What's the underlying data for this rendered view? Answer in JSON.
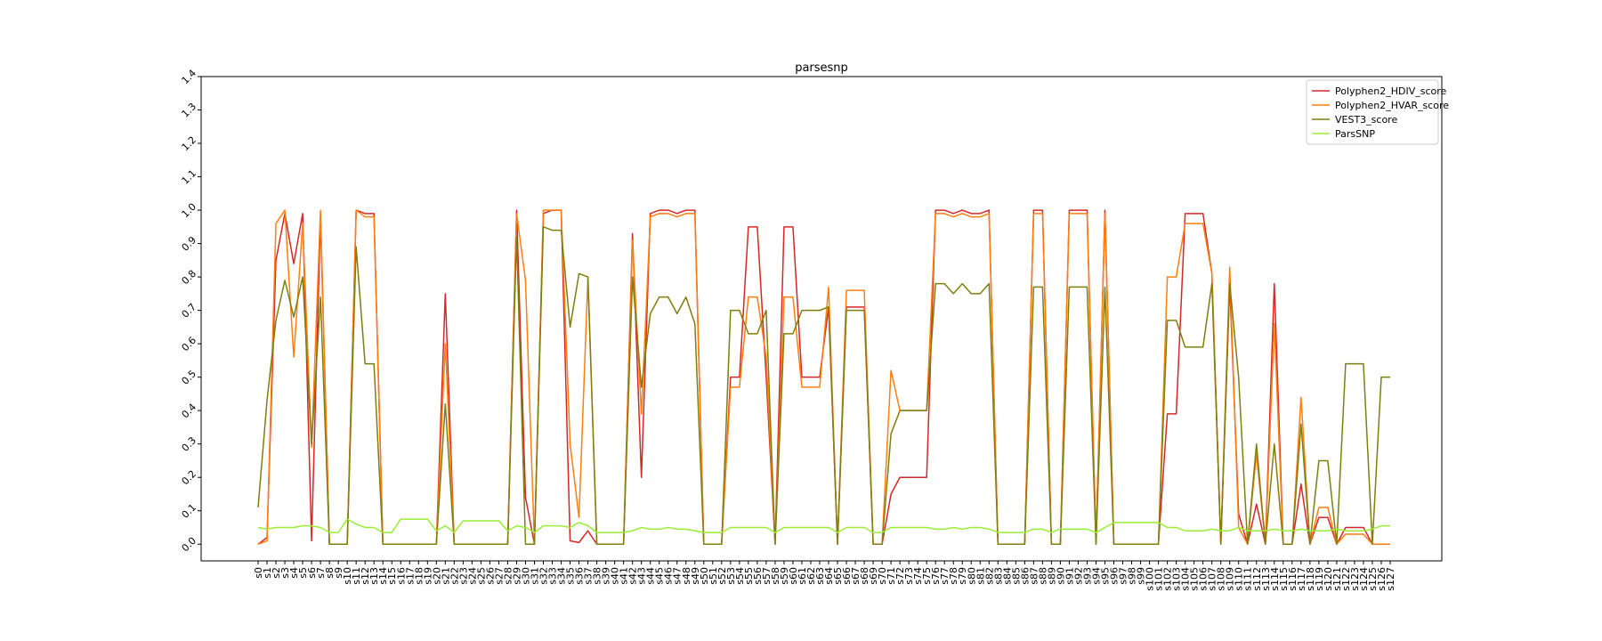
{
  "chart_data": {
    "type": "line",
    "title": "parsesnp",
    "xlabel": "",
    "ylabel": "",
    "ylim": [
      -0.05,
      1.4
    ],
    "yticks": [
      0.0,
      0.1,
      0.2,
      0.3,
      0.4,
      0.5,
      0.6,
      0.7,
      0.8,
      0.9,
      1.0,
      1.1,
      1.2,
      1.3,
      1.4
    ],
    "ytick_labels": [
      "0.0",
      "0.1",
      "0.2",
      "0.3",
      "0.4",
      "0.5",
      "0.6",
      "0.7",
      "0.8",
      "0.9",
      "1.0",
      "1.1",
      "1.2",
      "1.3",
      "1.4"
    ],
    "grid": false,
    "legend_position": "top-right",
    "categories": [
      "s0",
      "s1",
      "s2",
      "s3",
      "s4",
      "s5",
      "s6",
      "s7",
      "s8",
      "s9",
      "s10",
      "s11",
      "s12",
      "s13",
      "s14",
      "s15",
      "s16",
      "s17",
      "s18",
      "s19",
      "s20",
      "s21",
      "s22",
      "s23",
      "s24",
      "s25",
      "s26",
      "s27",
      "s28",
      "s29",
      "s30",
      "s31",
      "s32",
      "s33",
      "s34",
      "s35",
      "s36",
      "s37",
      "s38",
      "s39",
      "s40",
      "s41",
      "s42",
      "s43",
      "s44",
      "s45",
      "s46",
      "s47",
      "s48",
      "s49",
      "s50",
      "s51",
      "s52",
      "s53",
      "s54",
      "s55",
      "s56",
      "s57",
      "s58",
      "s59",
      "s60",
      "s61",
      "s62",
      "s63",
      "s64",
      "s65",
      "s66",
      "s67",
      "s68",
      "s69",
      "s70",
      "s71",
      "s72",
      "s73",
      "s74",
      "s75",
      "s76",
      "s77",
      "s78",
      "s79",
      "s80",
      "s81",
      "s82",
      "s83",
      "s84",
      "s85",
      "s86",
      "s87",
      "s88",
      "s89",
      "s90",
      "s91",
      "s92",
      "s93",
      "s94",
      "s95",
      "s96",
      "s97",
      "s98",
      "s99",
      "s100",
      "s101",
      "s102",
      "s103",
      "s104",
      "s105",
      "s106",
      "s107",
      "s108",
      "s109",
      "s110",
      "s111",
      "s112",
      "s113",
      "s114",
      "s115",
      "s116",
      "s117",
      "s118",
      "s119",
      "s120",
      "s121",
      "s122",
      "s123",
      "s124",
      "s125",
      "s126",
      "s127"
    ],
    "series": [
      {
        "name": "Polyphen2_HDIV_score",
        "color": "#d62728",
        "values": [
          0.0,
          0.02,
          0.85,
          0.99,
          0.84,
          0.99,
          0.01,
          0.98,
          0.0,
          0.0,
          0.0,
          1.0,
          0.99,
          0.99,
          0.0,
          0.0,
          0.0,
          0.0,
          0.0,
          0.0,
          0.0,
          0.75,
          0.0,
          0.0,
          0.0,
          0.0,
          0.0,
          0.0,
          0.0,
          1.0,
          0.14,
          0.0,
          0.99,
          1.0,
          1.0,
          0.01,
          0.005,
          0.04,
          0.0,
          0.0,
          0.0,
          0.0,
          0.93,
          0.2,
          0.99,
          1.0,
          1.0,
          0.99,
          1.0,
          1.0,
          0.0,
          0.0,
          0.0,
          0.5,
          0.5,
          0.95,
          0.95,
          0.5,
          0.0,
          0.95,
          0.95,
          0.5,
          0.5,
          0.5,
          0.71,
          0.0,
          0.71,
          0.71,
          0.71,
          0.0,
          0.0,
          0.15,
          0.2,
          0.2,
          0.2,
          0.2,
          1.0,
          1.0,
          0.99,
          1.0,
          0.99,
          0.99,
          1.0,
          0.0,
          0.0,
          0.0,
          0.0,
          1.0,
          1.0,
          0.0,
          0.0,
          1.0,
          1.0,
          1.0,
          0.0,
          1.0,
          0.0,
          0.0,
          0.0,
          0.0,
          0.0,
          0.0,
          0.39,
          0.39,
          0.99,
          0.99,
          0.99,
          0.81,
          0.0,
          0.78,
          0.09,
          0.0,
          0.12,
          0.0,
          0.78,
          0.0,
          0.0,
          0.18,
          0.0,
          0.08,
          0.08,
          0.0,
          0.05,
          0.05,
          0.05,
          0.0,
          0.0,
          0.0
        ]
      },
      {
        "name": "Polyphen2_HVAR_score",
        "color": "#ff7f0e",
        "values": [
          0.0,
          0.01,
          0.96,
          1.0,
          0.56,
          0.96,
          0.29,
          1.0,
          0.0,
          0.0,
          0.0,
          1.0,
          0.98,
          0.98,
          0.0,
          0.0,
          0.0,
          0.0,
          0.0,
          0.0,
          0.0,
          0.6,
          0.0,
          0.0,
          0.0,
          0.0,
          0.0,
          0.0,
          0.0,
          0.99,
          0.79,
          0.0,
          1.0,
          1.0,
          1.0,
          0.3,
          0.08,
          0.8,
          0.0,
          0.0,
          0.0,
          0.0,
          0.91,
          0.39,
          0.98,
          0.99,
          0.99,
          0.98,
          0.99,
          0.99,
          0.0,
          0.0,
          0.0,
          0.47,
          0.47,
          0.74,
          0.74,
          0.56,
          0.0,
          0.74,
          0.74,
          0.47,
          0.47,
          0.47,
          0.77,
          0.0,
          0.76,
          0.76,
          0.76,
          0.0,
          0.0,
          0.52,
          0.4,
          0.4,
          0.4,
          0.4,
          0.99,
          0.99,
          0.98,
          0.99,
          0.98,
          0.98,
          0.99,
          0.0,
          0.0,
          0.0,
          0.0,
          0.99,
          0.99,
          0.0,
          0.0,
          0.99,
          0.99,
          0.99,
          0.0,
          0.99,
          0.0,
          0.0,
          0.0,
          0.0,
          0.0,
          0.0,
          0.8,
          0.8,
          0.96,
          0.96,
          0.96,
          0.81,
          0.0,
          0.83,
          0.05,
          0.0,
          0.27,
          0.0,
          0.66,
          0.0,
          0.0,
          0.44,
          0.0,
          0.11,
          0.11,
          0.0,
          0.03,
          0.03,
          0.03,
          0.0,
          0.0,
          0.0
        ]
      },
      {
        "name": "VEST3_score",
        "color": "#7f7f0f",
        "values": [
          0.11,
          0.43,
          0.67,
          0.79,
          0.68,
          0.8,
          0.3,
          0.74,
          0.0,
          0.0,
          0.0,
          0.89,
          0.54,
          0.54,
          0.0,
          0.0,
          0.0,
          0.0,
          0.0,
          0.0,
          0.0,
          0.42,
          0.0,
          0.0,
          0.0,
          0.0,
          0.0,
          0.0,
          0.0,
          0.92,
          0.0,
          0.0,
          0.95,
          0.94,
          0.94,
          0.65,
          0.81,
          0.8,
          0.0,
          0.0,
          0.0,
          0.0,
          0.8,
          0.47,
          0.69,
          0.74,
          0.74,
          0.69,
          0.74,
          0.66,
          0.0,
          0.0,
          0.0,
          0.7,
          0.7,
          0.63,
          0.63,
          0.7,
          0.0,
          0.63,
          0.63,
          0.7,
          0.7,
          0.7,
          0.71,
          0.0,
          0.7,
          0.7,
          0.7,
          0.0,
          0.0,
          0.33,
          0.4,
          0.4,
          0.4,
          0.4,
          0.78,
          0.78,
          0.75,
          0.78,
          0.75,
          0.75,
          0.78,
          0.0,
          0.0,
          0.0,
          0.0,
          0.77,
          0.77,
          0.0,
          0.0,
          0.77,
          0.77,
          0.77,
          0.0,
          0.77,
          0.0,
          0.0,
          0.0,
          0.0,
          0.0,
          0.0,
          0.67,
          0.67,
          0.59,
          0.59,
          0.59,
          0.78,
          0.0,
          0.78,
          0.5,
          0.0,
          0.3,
          0.0,
          0.3,
          0.0,
          0.0,
          0.36,
          0.0,
          0.25,
          0.25,
          0.0,
          0.54,
          0.54,
          0.54,
          0.0,
          0.5,
          0.5
        ]
      },
      {
        "name": "ParsSNP",
        "color": "#99ee33",
        "values": [
          0.05,
          0.045,
          0.05,
          0.05,
          0.05,
          0.055,
          0.055,
          0.05,
          0.035,
          0.035,
          0.075,
          0.06,
          0.05,
          0.05,
          0.035,
          0.035,
          0.075,
          0.075,
          0.075,
          0.075,
          0.04,
          0.055,
          0.035,
          0.07,
          0.07,
          0.07,
          0.07,
          0.07,
          0.04,
          0.055,
          0.05,
          0.035,
          0.055,
          0.055,
          0.055,
          0.05,
          0.065,
          0.055,
          0.035,
          0.035,
          0.035,
          0.035,
          0.04,
          0.05,
          0.045,
          0.045,
          0.05,
          0.045,
          0.045,
          0.04,
          0.035,
          0.035,
          0.035,
          0.05,
          0.05,
          0.05,
          0.05,
          0.05,
          0.035,
          0.05,
          0.05,
          0.05,
          0.05,
          0.05,
          0.05,
          0.035,
          0.05,
          0.05,
          0.05,
          0.035,
          0.035,
          0.05,
          0.05,
          0.05,
          0.05,
          0.05,
          0.045,
          0.045,
          0.05,
          0.045,
          0.05,
          0.05,
          0.045,
          0.035,
          0.035,
          0.035,
          0.035,
          0.045,
          0.045,
          0.035,
          0.045,
          0.045,
          0.045,
          0.045,
          0.035,
          0.05,
          0.065,
          0.065,
          0.065,
          0.065,
          0.065,
          0.065,
          0.05,
          0.05,
          0.04,
          0.04,
          0.04,
          0.045,
          0.04,
          0.04,
          0.05,
          0.04,
          0.04,
          0.04,
          0.045,
          0.04,
          0.04,
          0.045,
          0.04,
          0.04,
          0.04,
          0.045,
          0.04,
          0.04,
          0.04,
          0.045,
          0.055,
          0.055
        ]
      }
    ]
  }
}
